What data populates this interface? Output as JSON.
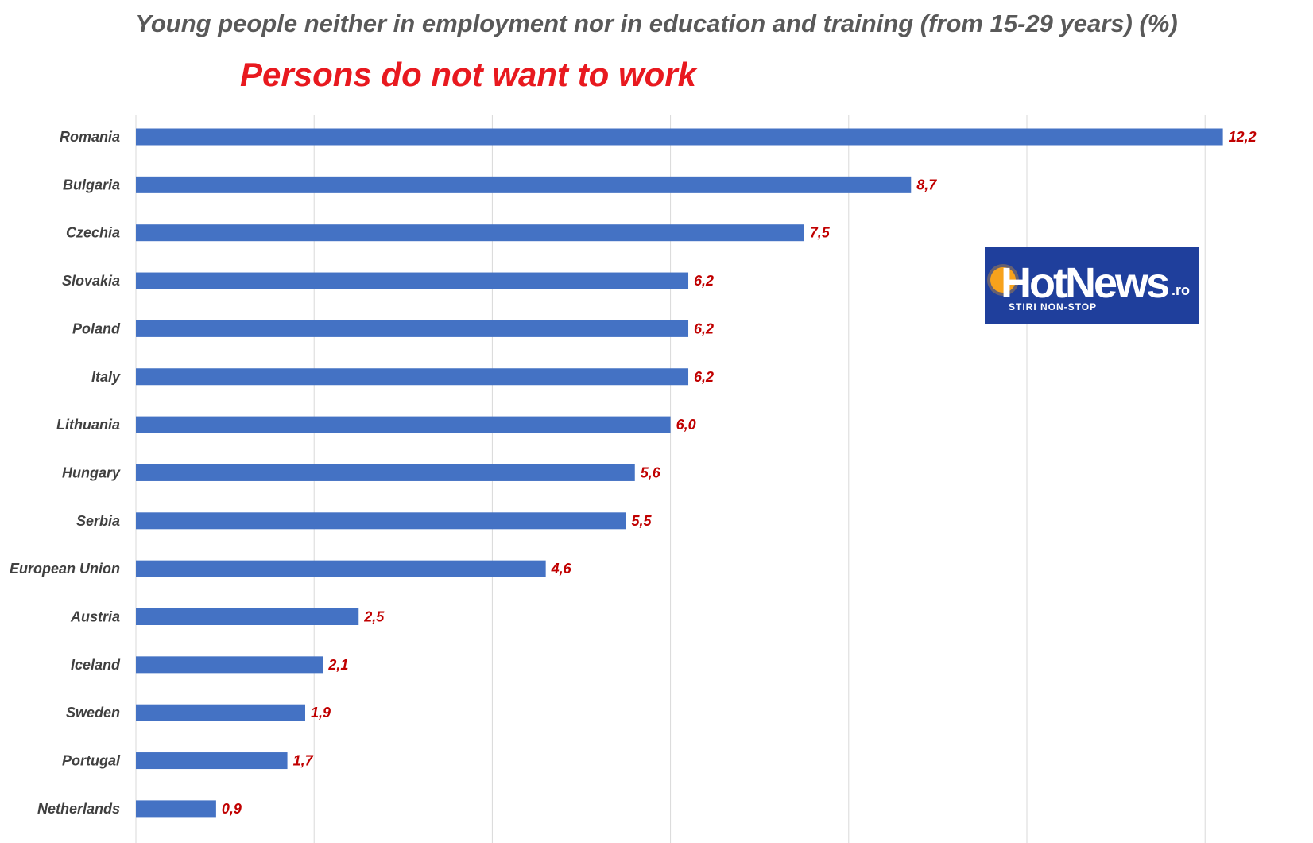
{
  "chart_data": {
    "type": "bar",
    "orientation": "horizontal",
    "title": "Young people neither in employment nor in education and training  (from 15-29 years) (%)",
    "subtitle": "Persons do not want to work",
    "categories": [
      "Romania",
      "Bulgaria",
      "Czechia",
      "Slovakia",
      "Poland",
      "Italy",
      "Lithuania",
      "Hungary",
      "Serbia",
      "European Union",
      "Austria",
      "Iceland",
      "Sweden",
      "Portugal",
      "Netherlands"
    ],
    "values": [
      12.2,
      8.7,
      7.5,
      6.2,
      6.2,
      6.2,
      6.0,
      5.6,
      5.5,
      4.6,
      2.5,
      2.1,
      1.9,
      1.7,
      0.9
    ],
    "value_labels": [
      "12,2",
      "8,7",
      "7,5",
      "6,2",
      "6,2",
      "6,2",
      "6,0",
      "5,6",
      "5,5",
      "4,6",
      "2,5",
      "2,1",
      "1,9",
      "1,7",
      "0,9"
    ],
    "xlim": [
      0,
      14
    ],
    "x_gridlines": [
      0,
      2,
      4,
      6,
      8,
      10,
      12,
      14
    ],
    "grid": true,
    "legend": "none",
    "bar_color": "#4472c4",
    "label_color": "#c00000",
    "category_color": "#404040",
    "subtitle_color": "#e8191f"
  },
  "logo": {
    "brand": "HotNews",
    "tld": ".ro",
    "tagline": "STIRI NON-STOP",
    "background": "#1f3f9c",
    "accent": "#f7a21b"
  }
}
